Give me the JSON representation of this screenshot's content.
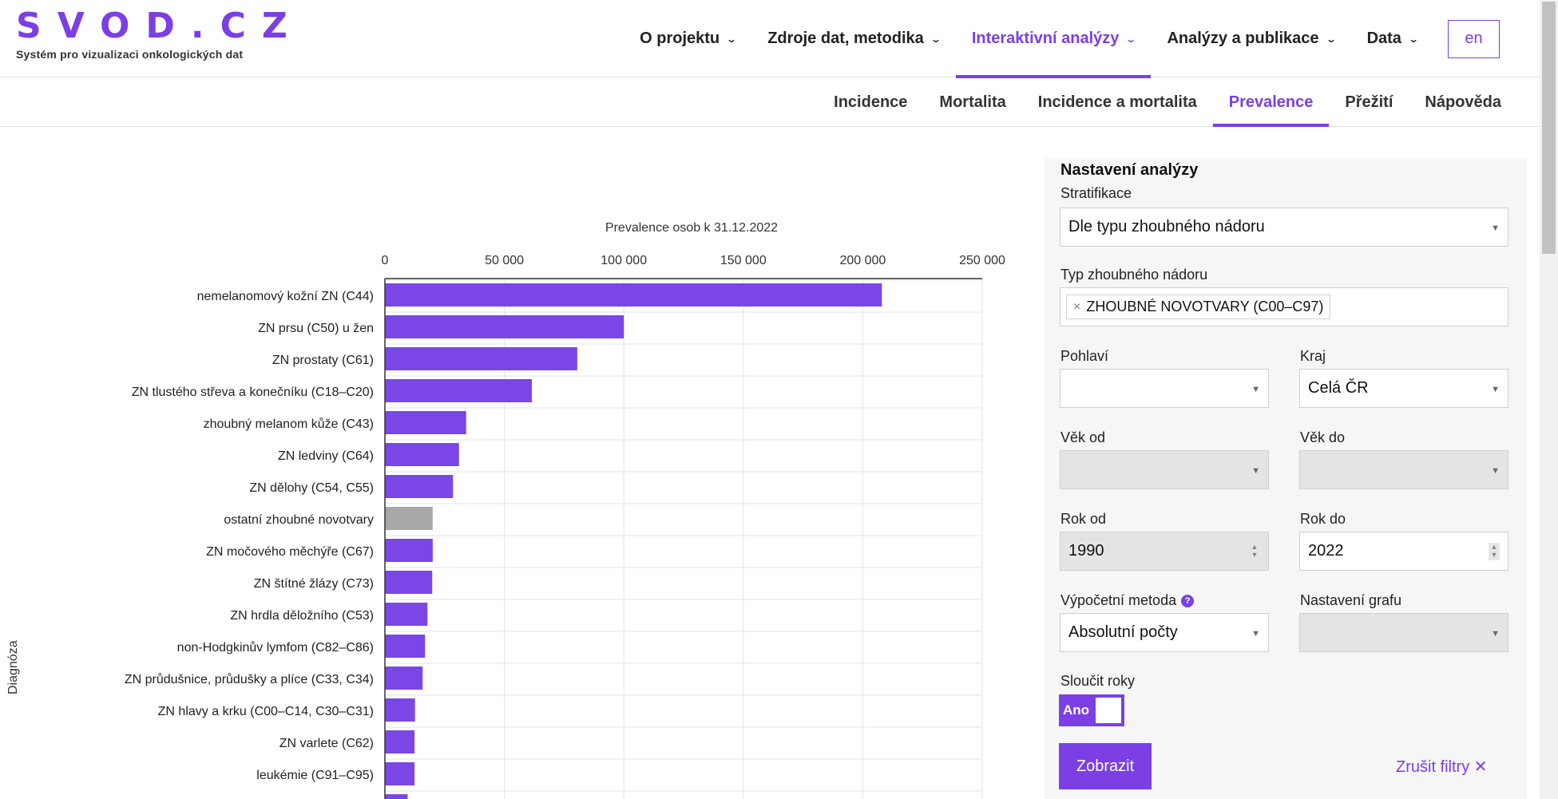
{
  "header": {
    "logo_text": "SVOD.CZ",
    "logo_sub": "Systém pro vizualizaci onkologických dat",
    "nav": [
      {
        "label": "O projektu",
        "active": false
      },
      {
        "label": "Zdroje dat, metodika",
        "active": false
      },
      {
        "label": "Interaktivní analýzy",
        "active": true
      },
      {
        "label": "Analýzy a publikace",
        "active": false
      },
      {
        "label": "Data",
        "active": false
      }
    ],
    "lang_label": "en"
  },
  "subnav": {
    "tabs": [
      {
        "label": "Incidence",
        "active": false
      },
      {
        "label": "Mortalita",
        "active": false
      },
      {
        "label": "Incidence a mortalita",
        "active": false
      },
      {
        "label": "Prevalence",
        "active": true
      },
      {
        "label": "Přežití",
        "active": false
      },
      {
        "label": "Nápověda",
        "active": false
      }
    ]
  },
  "chart_data": {
    "type": "bar",
    "orientation": "horizontal",
    "title": "Prevalence osob k 31.12.2022",
    "ylabel": "Diagnóza",
    "xlim": [
      0,
      250000
    ],
    "xticks": [
      "0",
      "50 000",
      "100 000",
      "150 000",
      "200 000",
      "250 000"
    ],
    "xtick_values": [
      0,
      50000,
      100000,
      150000,
      200000,
      250000
    ],
    "grid": true,
    "colors": {
      "primary": "#7b46e6",
      "other": "#a8a8a8"
    },
    "categories": [
      "nemelanomový kožní ZN (C44)",
      "ZN prsu (C50) u žen",
      "ZN prostaty (C61)",
      "ZN tlustého střeva a konečníku (C18–C20)",
      "zhoubný melanom kůže (C43)",
      "ZN ledviny (C64)",
      "ZN dělohy (C54, C55)",
      "ostatní zhoubné novotvary",
      "ZN močového měchýře (C67)",
      "ZN štítné žlázy (C73)",
      "ZN hrdla děložního (C53)",
      "non-Hodgkinův lymfom (C82–C86)",
      "ZN průdušnice, průdušky a plíce (C33, C34)",
      "ZN hlavy a krku (C00–C14, C30–C31)",
      "ZN varlete (C62)",
      "leukémie (C91–C95)"
    ],
    "values": [
      208000,
      100000,
      80500,
      61500,
      34000,
      31000,
      28500,
      20000,
      20000,
      19800,
      17800,
      16800,
      15800,
      12600,
      12400,
      12400
    ],
    "highlight_gray_index": 7,
    "partial_next_value": 9500
  },
  "panel": {
    "title": "Nastavení analýzy",
    "stratifikace_label": "Stratifikace",
    "stratifikace_value": "Dle typu zhoubného nádoru",
    "typ_label": "Typ zhoubného nádoru",
    "typ_tag": "ZHOUBNÉ NOVOTVARY (C00–C97)",
    "pohlavi_label": "Pohlaví",
    "pohlavi_value": "",
    "kraj_label": "Kraj",
    "kraj_value": "Celá ČR",
    "vek_od_label": "Věk od",
    "vek_do_label": "Věk do",
    "rok_od_label": "Rok od",
    "rok_od_value": "1990",
    "rok_do_label": "Rok do",
    "rok_do_value": "2022",
    "metoda_label": "Výpočetní metoda",
    "metoda_value": "Absolutní počty",
    "graf_label": "Nastavení grafu",
    "sloucit_label": "Sloučit roky",
    "sloucit_value": "Ano",
    "zobrazit_label": "Zobrazit",
    "zrusit_label": "Zrušit filtry ✕"
  }
}
